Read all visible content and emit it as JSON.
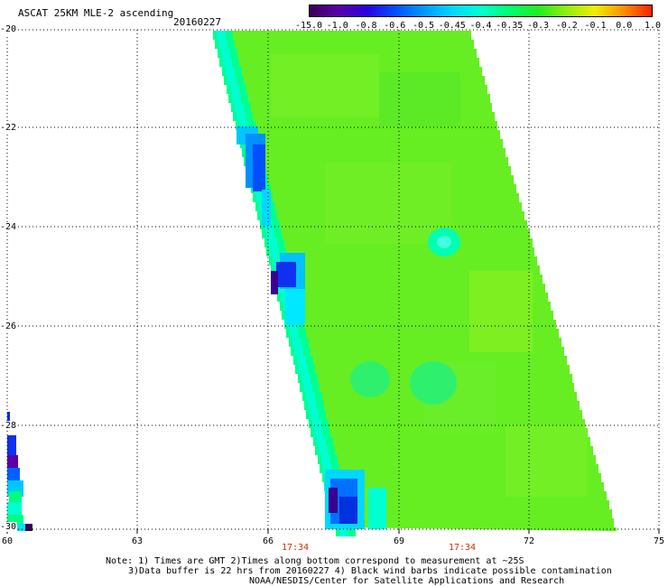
{
  "header": {
    "title": "ASCAT 25KM MLE-2 ascending",
    "date": "20160227"
  },
  "colorbar": {
    "labels": [
      "-15.0",
      "-1.0",
      "-0.8",
      "-0.6",
      "-0.5",
      "-0.45",
      "-0.4",
      "-0.35",
      "-0.3",
      "-0.2",
      "-0.1",
      "0.0",
      "1.0"
    ],
    "colors": [
      "#3a0058",
      "#5a00a8",
      "#2a00e0",
      "#0050ff",
      "#0098ff",
      "#00d8ff",
      "#00ffd0",
      "#00ff70",
      "#20ee20",
      "#90ee10",
      "#f0f000",
      "#ff9000",
      "#ff2000"
    ]
  },
  "axes": {
    "lat_labels": [
      "-20",
      "-22",
      "-24",
      "-26",
      "-28",
      "-30"
    ],
    "lon_labels": [
      "60",
      "63",
      "66",
      "69",
      "72",
      "75"
    ],
    "time_labels": [
      "17:34",
      "17:34"
    ]
  },
  "notes": {
    "line1": "Note: 1) Times are GMT 2)Times along bottom correspond to measurement at ~25S",
    "line2": "3)Data buffer is 22 hrs from 20160227 4) Black wind barbs indicate possible contamination",
    "line3": "NOAA/NESDIS/Center for Satellite Applications and Research"
  },
  "map_style": {
    "swath_base_color": "#66ee22",
    "grid_style": "dotted"
  }
}
